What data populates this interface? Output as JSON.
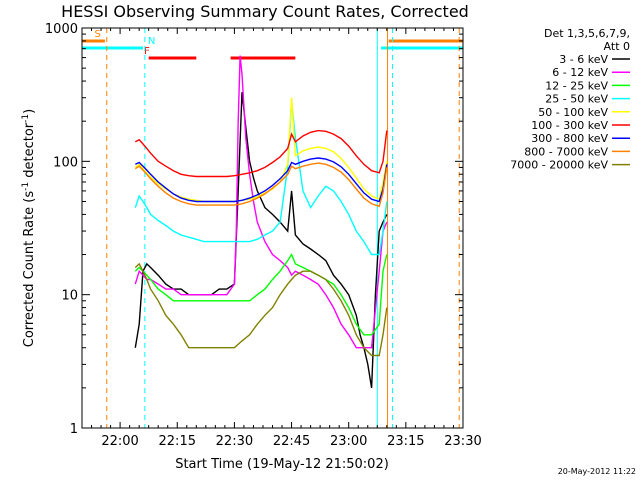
{
  "chart_data": {
    "type": "line",
    "title": "HESSI Observing Summary Count Rates, Corrected",
    "xlabel": "Start Time (19-May-12 21:50:02)",
    "ylabel_main": "Corrected Count Rate (s",
    "ylabel_sup1": "-1",
    "ylabel_mid": " detector",
    "ylabel_sup2": "-1",
    "ylabel_end": ")",
    "y_scale": "log",
    "ylim": [
      1,
      1000
    ],
    "xlim_minutes": [
      0,
      100
    ],
    "x_ticks": [
      {
        "label": "22:00",
        "t": 10
      },
      {
        "label": "22:15",
        "t": 25
      },
      {
        "label": "22:30",
        "t": 40
      },
      {
        "label": "22:45",
        "t": 55
      },
      {
        "label": "23:00",
        "t": 70
      },
      {
        "label": "23:15",
        "t": 85
      },
      {
        "label": "23:30",
        "t": 100
      }
    ],
    "y_ticks": [
      {
        "label": "1",
        "v": 1
      },
      {
        "label": "10",
        "v": 10
      },
      {
        "label": "100",
        "v": 100
      },
      {
        "label": "1000",
        "v": 1000
      }
    ],
    "legend_title_1": "Det 1,3,5,6,7,9,",
    "legend_title_2": "Att 0",
    "legend_position": "right",
    "series": [
      {
        "name": "3 - 6 keV",
        "color": "#000000",
        "x": [
          14,
          15,
          16,
          17,
          18,
          20,
          22,
          24,
          26,
          28,
          30,
          32,
          34,
          36,
          38,
          40,
          41,
          42,
          43,
          44,
          45,
          46,
          48,
          50,
          52,
          54,
          55,
          56,
          58,
          60,
          62,
          64,
          66,
          68,
          70,
          72,
          73,
          74,
          75,
          76,
          77,
          78,
          79,
          80
        ],
        "y": [
          4,
          6,
          15,
          17,
          16,
          14,
          12,
          11,
          11,
          10,
          10,
          10,
          10,
          11,
          11,
          12,
          60,
          330,
          180,
          100,
          75,
          60,
          45,
          40,
          35,
          30,
          60,
          28,
          24,
          22,
          20,
          18,
          14,
          12,
          10,
          7,
          5,
          4,
          3,
          2,
          10,
          30,
          35,
          40
        ]
      },
      {
        "name": "6 - 12 keV",
        "color": "#ff00ff",
        "x": [
          14,
          15,
          16,
          17,
          18,
          20,
          22,
          24,
          26,
          28,
          30,
          32,
          34,
          36,
          38,
          40,
          40.5,
          41,
          41.5,
          42,
          43,
          44,
          45,
          46,
          48,
          50,
          52,
          54,
          55,
          56,
          58,
          60,
          62,
          64,
          66,
          68,
          70,
          72,
          74,
          76,
          78,
          79,
          80
        ],
        "y": [
          12,
          15,
          14,
          13,
          13,
          12,
          11,
          11,
          10,
          10,
          10,
          10,
          10,
          10,
          10,
          12,
          30,
          200,
          620,
          450,
          150,
          80,
          50,
          35,
          25,
          20,
          18,
          16,
          14,
          15,
          14,
          13,
          12,
          10,
          8,
          6,
          5,
          4,
          4,
          4,
          15,
          30,
          35
        ]
      },
      {
        "name": "12 - 25 keV",
        "color": "#00ff00",
        "x": [
          14,
          15,
          16,
          17,
          18,
          20,
          22,
          24,
          26,
          28,
          30,
          32,
          34,
          36,
          38,
          40,
          42,
          44,
          46,
          48,
          50,
          52,
          54,
          55,
          56,
          58,
          60,
          62,
          64,
          66,
          68,
          70,
          72,
          74,
          76,
          78,
          79,
          80
        ],
        "y": [
          15,
          16,
          15,
          14,
          13,
          11,
          10,
          9,
          9,
          9,
          9,
          9,
          9,
          9,
          9,
          9,
          9,
          9,
          10,
          11,
          13,
          15,
          18,
          20,
          17,
          16,
          15,
          14,
          13,
          12,
          10,
          8,
          6,
          5,
          5,
          6,
          15,
          20
        ]
      },
      {
        "name": "25 - 50 keV",
        "color": "#00ffff",
        "x": [
          14,
          15,
          16,
          17,
          18,
          20,
          22,
          24,
          26,
          28,
          30,
          32,
          34,
          36,
          38,
          40,
          42,
          44,
          46,
          48,
          50,
          52,
          54,
          55,
          56,
          58,
          60,
          62,
          64,
          66,
          68,
          70,
          72,
          74,
          76,
          78,
          79,
          80
        ],
        "y": [
          45,
          55,
          50,
          45,
          40,
          36,
          33,
          30,
          28,
          27,
          26,
          25,
          25,
          25,
          25,
          25,
          25,
          25,
          26,
          28,
          30,
          35,
          90,
          280,
          150,
          60,
          45,
          55,
          65,
          60,
          50,
          40,
          30,
          25,
          20,
          20,
          30,
          50
        ]
      },
      {
        "name": "50 - 100 keV",
        "color": "#ffff00",
        "x": [
          14,
          15,
          16,
          17,
          18,
          20,
          22,
          24,
          26,
          28,
          30,
          32,
          34,
          36,
          38,
          40,
          42,
          44,
          46,
          48,
          50,
          52,
          54,
          55,
          56,
          58,
          60,
          62,
          64,
          66,
          68,
          70,
          72,
          74,
          76,
          78,
          79,
          80
        ],
        "y": [
          90,
          95,
          88,
          82,
          76,
          68,
          62,
          57,
          54,
          52,
          51,
          50,
          50,
          50,
          50,
          50,
          51,
          52,
          54,
          58,
          62,
          70,
          95,
          300,
          110,
          120,
          125,
          128,
          125,
          118,
          105,
          90,
          75,
          62,
          55,
          52,
          70,
          100
        ]
      },
      {
        "name": "100 - 300 keV",
        "color": "#ff0000",
        "x": [
          14,
          15,
          16,
          17,
          18,
          20,
          22,
          24,
          26,
          28,
          30,
          32,
          34,
          36,
          38,
          40,
          42,
          44,
          46,
          48,
          50,
          52,
          54,
          55,
          56,
          58,
          60,
          62,
          64,
          66,
          68,
          70,
          72,
          74,
          76,
          78,
          79,
          80
        ],
        "y": [
          140,
          145,
          135,
          125,
          115,
          100,
          92,
          85,
          80,
          78,
          77,
          77,
          77,
          77,
          77,
          78,
          80,
          82,
          85,
          90,
          98,
          108,
          125,
          160,
          140,
          155,
          165,
          170,
          168,
          160,
          148,
          130,
          110,
          95,
          85,
          82,
          100,
          170
        ]
      },
      {
        "name": "300 - 800 keV",
        "color": "#0000ff",
        "x": [
          14,
          15,
          16,
          17,
          18,
          20,
          22,
          24,
          26,
          28,
          30,
          32,
          34,
          36,
          38,
          40,
          42,
          44,
          46,
          48,
          50,
          52,
          54,
          55,
          56,
          58,
          60,
          62,
          64,
          66,
          68,
          70,
          72,
          74,
          76,
          78,
          79,
          80
        ],
        "y": [
          95,
          98,
          92,
          86,
          80,
          70,
          63,
          57,
          53,
          51,
          50,
          50,
          50,
          50,
          50,
          50,
          51,
          53,
          56,
          60,
          66,
          74,
          85,
          98,
          95,
          100,
          104,
          106,
          104,
          99,
          91,
          80,
          68,
          58,
          52,
          50,
          62,
          95
        ]
      },
      {
        "name": "800 - 7000 keV",
        "color": "#ff8000",
        "x": [
          14,
          15,
          16,
          17,
          18,
          20,
          22,
          24,
          26,
          28,
          30,
          32,
          34,
          36,
          38,
          40,
          42,
          44,
          46,
          48,
          50,
          52,
          54,
          55,
          56,
          58,
          60,
          62,
          64,
          66,
          68,
          70,
          72,
          74,
          76,
          78,
          79,
          80
        ],
        "y": [
          88,
          92,
          86,
          80,
          74,
          65,
          58,
          53,
          50,
          48,
          47,
          47,
          47,
          47,
          47,
          47,
          48,
          50,
          53,
          57,
          63,
          70,
          80,
          92,
          88,
          92,
          95,
          97,
          95,
          90,
          83,
          73,
          62,
          53,
          48,
          46,
          58,
          90
        ]
      },
      {
        "name": "7000 - 20000 keV",
        "color": "#808000",
        "x": [
          14,
          15,
          16,
          17,
          18,
          20,
          22,
          24,
          26,
          28,
          30,
          32,
          34,
          36,
          38,
          40,
          42,
          44,
          46,
          48,
          50,
          52,
          54,
          55,
          56,
          58,
          60,
          62,
          64,
          66,
          68,
          70,
          72,
          74,
          76,
          78,
          79,
          80
        ],
        "y": [
          16,
          17,
          15,
          13,
          11,
          9,
          7,
          6,
          5,
          4,
          4,
          4,
          4,
          4,
          4,
          4,
          4.5,
          5,
          6,
          7,
          8,
          10,
          12,
          13,
          14,
          15,
          15,
          14,
          13,
          11,
          9,
          7,
          5,
          4,
          3.5,
          3.5,
          5,
          8
        ]
      }
    ],
    "flag_bars": [
      {
        "label": "S",
        "color": "#ff8000",
        "start": -1,
        "end": 6,
        "level": 1,
        "marker_t": 2.5
      },
      {
        "label": "N",
        "color": "#00ffff",
        "start": -1,
        "end": 16,
        "level": 2,
        "marker_t": 16.5
      },
      {
        "label": "F",
        "color": "#ff0000",
        "start": 17.5,
        "end": 30,
        "level": 3,
        "marker_t": 15.5
      },
      {
        "label": "",
        "color": "#ff0000",
        "start": 39,
        "end": 56,
        "level": 3,
        "marker_t": null
      },
      {
        "label": "",
        "color": "#00ffff",
        "start": 78.5,
        "end": 101,
        "level": 2,
        "marker_t": null
      },
      {
        "label": "",
        "color": "#ff8000",
        "start": 80.5,
        "end": 101,
        "level": 1,
        "marker_t": null
      }
    ],
    "vertical_markers": [
      {
        "color": "#ff8000",
        "t": 6.5,
        "dashed": true
      },
      {
        "color": "#00ffff",
        "t": 16.5,
        "dashed": true
      },
      {
        "color": "#00ffff",
        "t": 77.5,
        "dashed": false
      },
      {
        "color": "#ff8000",
        "t": 80.2,
        "dashed": false
      },
      {
        "color": "#00ffff",
        "t": 81.5,
        "dashed": true
      },
      {
        "color": "#ff8000",
        "t": 99,
        "dashed": true
      }
    ],
    "grid": false
  },
  "footer": {
    "timestamp": "20-May-2012 11:22"
  }
}
